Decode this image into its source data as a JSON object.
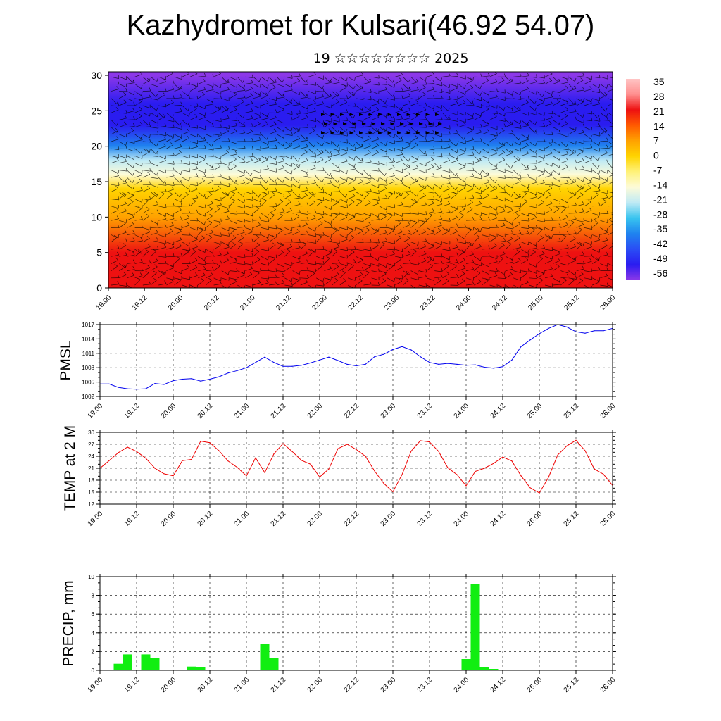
{
  "header": {
    "title": "Kazhydromet for Kulsari(46.92 54.07)",
    "subtitle": "19 ☆☆☆☆☆☆☆☆ 2025"
  },
  "chart_data": [
    {
      "type": "heatmap",
      "title": "",
      "ylabel": "",
      "x_ticks": [
        "19.00",
        "19.12",
        "20.00",
        "20.12",
        "21.00",
        "21.12",
        "22.00",
        "22.12",
        "23.00",
        "23.12",
        "24.00",
        "24.12",
        "25.00",
        "25.12",
        "26.00"
      ],
      "y_ticks": [
        0,
        5,
        10,
        15,
        20,
        25,
        30
      ],
      "ylim": [
        0,
        30.5
      ],
      "colorbar_ticks": [
        "35",
        "28",
        "21",
        "14",
        "7",
        "0",
        "-7",
        "-14",
        "-21",
        "-28",
        "-35",
        "-42",
        "-49",
        "-56"
      ],
      "colorbar_colors": [
        "#ffc4c4",
        "#ff8f8f",
        "#ee1111",
        "#ff5a00",
        "#ffa200",
        "#ffd400",
        "#fff27a",
        "#fdfbd8",
        "#bfeaf5",
        "#38c4ef",
        "#1f83ef",
        "#2a4df5",
        "#2a1cf0",
        "#8d38e8"
      ],
      "levels_profile": [
        {
          "y": 0,
          "value": 21
        },
        {
          "y": 5,
          "value": 18
        },
        {
          "y": 10,
          "value": 10
        },
        {
          "y": 14,
          "value": 0
        },
        {
          "y": 16,
          "value": -12
        },
        {
          "y": 18,
          "value": -24
        },
        {
          "y": 20,
          "value": -36
        },
        {
          "y": 23,
          "value": -46
        },
        {
          "y": 26,
          "value": -52
        },
        {
          "y": 30,
          "value": -56
        }
      ],
      "overlay": "wind barbs"
    },
    {
      "type": "line",
      "ylabel": "PMSL",
      "ylim": [
        1002,
        1017
      ],
      "y_ticks": [
        1002,
        1005,
        1008,
        1011,
        1014,
        1017
      ],
      "x_ticks": [
        "19.00",
        "19.12",
        "20.00",
        "20.12",
        "21.00",
        "21.12",
        "22.00",
        "22.12",
        "23.00",
        "23.12",
        "24.00",
        "24.12",
        "25.00",
        "25.12",
        "26.00"
      ],
      "color": "#0000ee",
      "x": [
        0,
        3,
        6,
        9,
        12,
        15,
        18,
        21,
        24,
        27,
        30,
        33,
        36,
        39,
        42,
        45,
        48,
        51,
        54,
        57,
        60,
        63,
        66,
        69,
        72,
        75,
        78,
        81,
        84,
        87,
        90,
        93,
        96,
        99,
        102,
        105,
        108,
        111,
        114,
        117,
        120,
        123,
        126,
        129,
        132,
        135,
        138,
        141,
        144,
        147,
        150,
        153,
        156,
        159,
        162,
        165,
        168
      ],
      "values": [
        1004.6,
        1004.6,
        1003.9,
        1003.6,
        1003.5,
        1003.6,
        1004.7,
        1004.5,
        1005.3,
        1005.6,
        1005.7,
        1005.2,
        1005.6,
        1006.1,
        1006.9,
        1007.4,
        1008,
        1009.1,
        1010.2,
        1009.1,
        1008.3,
        1008.3,
        1008.5,
        1009,
        1009.6,
        1010.2,
        1009.5,
        1008.7,
        1008.4,
        1008.7,
        1010.3,
        1010.8,
        1011.8,
        1012.4,
        1011.7,
        1010.3,
        1009.1,
        1008.7,
        1008.9,
        1008.7,
        1008.5,
        1008.6,
        1008.1,
        1007.9,
        1008.2,
        1009.6,
        1012.4,
        1013.8,
        1015.1,
        1016.2,
        1017,
        1016.5,
        1015.5,
        1015.2,
        1015.7,
        1015.7,
        1016.2
      ]
    },
    {
      "type": "line",
      "ylabel": "TEMP at 2 M",
      "ylim": [
        12,
        30
      ],
      "y_ticks": [
        12,
        15,
        18,
        21,
        24,
        27,
        30
      ],
      "x_ticks": [
        "19.00",
        "19.12",
        "20.00",
        "20.12",
        "21.00",
        "21.12",
        "22.00",
        "22.12",
        "23.00",
        "23.12",
        "24.00",
        "24.12",
        "25.00",
        "25.12",
        "26.00"
      ],
      "color": "#ee0000",
      "x": [
        0,
        3,
        6,
        9,
        12,
        15,
        18,
        21,
        24,
        27,
        30,
        33,
        36,
        39,
        42,
        45,
        48,
        51,
        54,
        57,
        60,
        63,
        66,
        69,
        72,
        75,
        78,
        81,
        84,
        87,
        90,
        93,
        96,
        99,
        102,
        105,
        108,
        111,
        114,
        117,
        120,
        123,
        126,
        129,
        132,
        135,
        138,
        141,
        144,
        147,
        150,
        153,
        156,
        159,
        162,
        165,
        168
      ],
      "values": [
        21,
        22.9,
        24.9,
        26.3,
        25.2,
        23.5,
        21,
        19.6,
        19.1,
        22.9,
        23.2,
        27.8,
        27.4,
        25.4,
        22.8,
        21.2,
        19.1,
        23.6,
        19.9,
        24.6,
        27.2,
        25.2,
        23,
        22,
        18.8,
        20.8,
        25.9,
        27,
        25.7,
        24,
        20.3,
        17.2,
        15.1,
        19.4,
        25.3,
        27.9,
        27.6,
        25.2,
        21.1,
        19.4,
        16.6,
        20.2,
        21,
        22.2,
        23.8,
        22.8,
        19.1,
        16.1,
        14.8,
        18.7,
        24.3,
        26.6,
        28,
        25.4,
        20.8,
        19.5,
        16.7
      ]
    },
    {
      "type": "bar",
      "ylabel": "PRECIP, mm",
      "ylim": [
        0,
        10
      ],
      "y_ticks": [
        0,
        2,
        4,
        6,
        8,
        10
      ],
      "x_ticks": [
        "19.00",
        "19.12",
        "20.00",
        "20.12",
        "21.00",
        "21.12",
        "22.00",
        "22.12",
        "23.00",
        "23.12",
        "24.00",
        "24.12",
        "25.00",
        "25.12",
        "26.00"
      ],
      "color": "#11ee11",
      "x": [
        6,
        9,
        15,
        18,
        30,
        33,
        54,
        57,
        72,
        117,
        120,
        123,
        126,
        129
      ],
      "values": [
        0.7,
        1.7,
        1.7,
        1.3,
        0.4,
        0.35,
        2.8,
        1.3,
        0.06,
        0.05,
        1.2,
        9.2,
        0.3,
        0.15
      ]
    }
  ]
}
